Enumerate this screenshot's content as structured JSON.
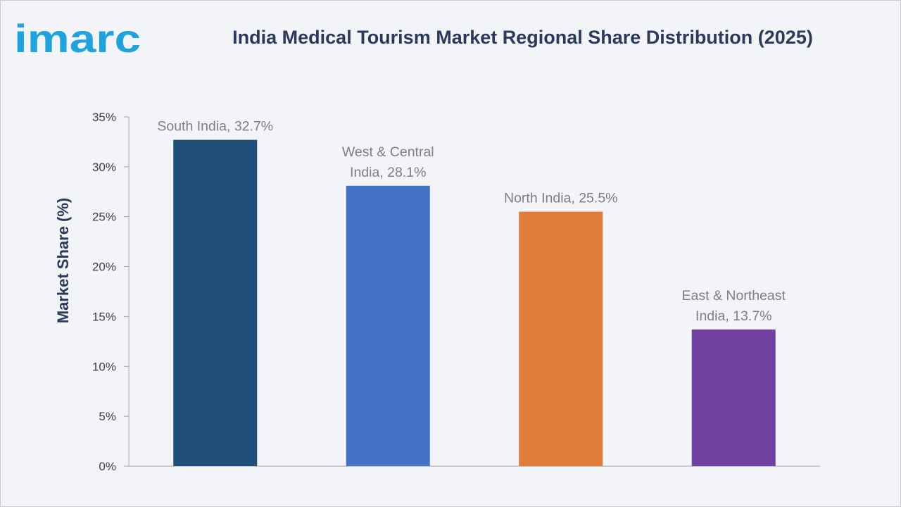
{
  "brand": {
    "logo_text": "imarc",
    "logo_color": "#1fa3e0"
  },
  "chart_data": {
    "type": "bar",
    "title": "India Medical Tourism Market Regional Share Distribution (2025)",
    "xlabel": "",
    "ylabel": "Market Share (%)",
    "ylim": [
      0,
      35
    ],
    "yticks": [
      0,
      5,
      10,
      15,
      20,
      25,
      30,
      35
    ],
    "ytick_labels": [
      "0%",
      "5%",
      "10%",
      "15%",
      "20%",
      "25%",
      "30%",
      "35%"
    ],
    "grid": false,
    "legend": "none",
    "categories": [
      "South India",
      "West & Central India",
      "North India",
      "East & Northeast India"
    ],
    "values": [
      32.7,
      28.1,
      25.5,
      13.7
    ],
    "data_labels": [
      [
        "South India, 32.7%"
      ],
      [
        "West & Central",
        "India, 28.1%"
      ],
      [
        "North India, 25.5%"
      ],
      [
        "East & Northeast",
        "India, 13.7%"
      ]
    ],
    "colors": [
      "#1f4e79",
      "#4472c4",
      "#e07b39",
      "#7041a0"
    ]
  }
}
